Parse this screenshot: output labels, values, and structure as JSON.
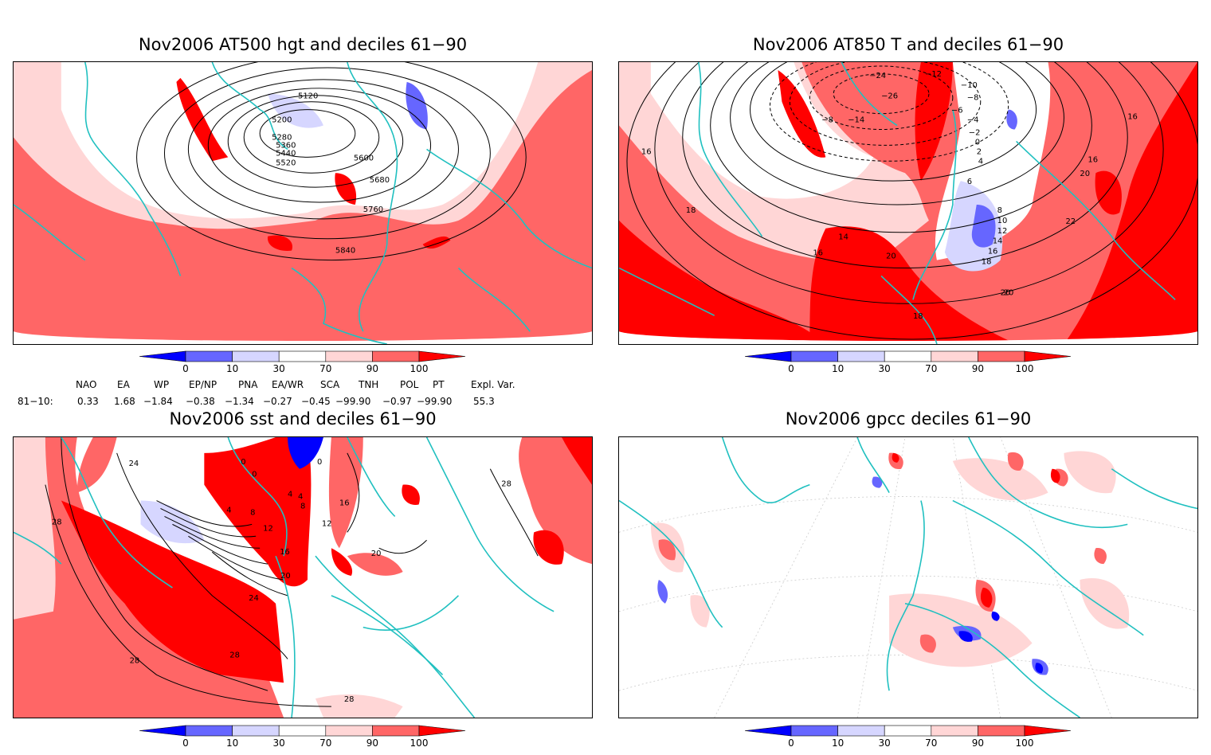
{
  "panels": [
    {
      "id": "p1",
      "title": "Nov2006 AT500 hgt and deciles 61−90",
      "contour_labels": [
        "5120",
        "5200",
        "5280",
        "5360",
        "5440",
        "5520",
        "5600",
        "5680",
        "5760",
        "5840"
      ]
    },
    {
      "id": "p2",
      "title": "Nov2006 AT850 T and deciles 61−90",
      "contour_labels": [
        "−24",
        "−12",
        "−10",
        "−26",
        "−8",
        "−14",
        "−6",
        "−4",
        "−2",
        "−8",
        "0",
        "2",
        "4",
        "6",
        "8",
        "10",
        "12",
        "14",
        "16",
        "18",
        "20",
        "20",
        "22",
        "20",
        "16",
        "16",
        "16",
        "18",
        "14",
        "16",
        "20",
        "18"
      ]
    },
    {
      "id": "p3",
      "title": "Nov2006 sst and deciles 61−90",
      "contour_labels": [
        "24",
        "28",
        "0",
        "0",
        "0",
        "4",
        "4",
        "4",
        "8",
        "8",
        "12",
        "12",
        "16",
        "16",
        "20",
        "20",
        "24",
        "28",
        "28",
        "28",
        "28"
      ]
    },
    {
      "id": "p4",
      "title": "Nov2006 gpcc deciles 61−90",
      "contour_labels": []
    }
  ],
  "colorbar": {
    "ticks": [
      "0",
      "10",
      "30",
      "70",
      "90",
      "100"
    ],
    "colors": [
      "#0000ff",
      "#6666ff",
      "#d6d6ff",
      "#ffffff",
      "#ffd6d6",
      "#ff6666",
      "#ff0000"
    ]
  },
  "indices": {
    "headers": [
      "NAO",
      "EA",
      "WP",
      "EP/NP",
      "PNA",
      "EA/WR",
      "SCA",
      "TNH",
      "POL",
      "PT",
      "Expl. Var."
    ],
    "row_label": "81−10:",
    "values": [
      "0.33",
      "1.68",
      "−1.84",
      "−0.38",
      "−1.34",
      "−0.27",
      "−0.45",
      "−99.90",
      "−0.97",
      "−99.90",
      "55.3"
    ]
  }
}
